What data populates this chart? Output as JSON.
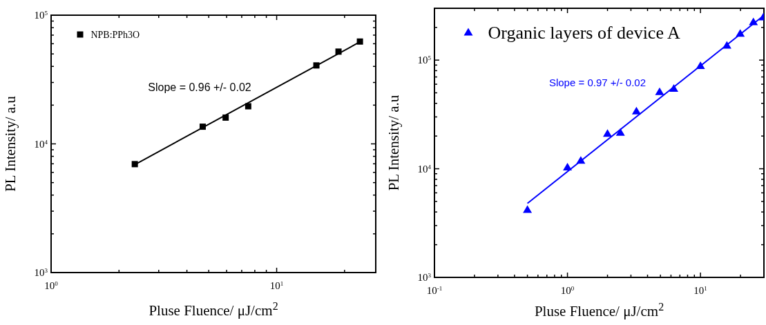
{
  "chart_data": [
    {
      "type": "scatter",
      "xlabel": "Pluse Fluence/ μJ/cm$^{2}$",
      "ylabel": "PL Intensity/ a.u",
      "log": "xy",
      "legend": "top left",
      "xlim": [
        1,
        27.5
      ],
      "ylim": [
        1000,
        100000
      ],
      "xticks": [
        {
          "value": 1,
          "label": "10$^{0}$"
        },
        {
          "value": 2,
          "label": null
        },
        {
          "value": 3,
          "label": null
        },
        {
          "value": 4,
          "label": null
        },
        {
          "value": 5,
          "label": null
        },
        {
          "value": 6,
          "label": null
        },
        {
          "value": 7,
          "label": null
        },
        {
          "value": 8,
          "label": null
        },
        {
          "value": 9,
          "label": null
        },
        {
          "value": 10,
          "label": "10$^{1}$"
        },
        {
          "value": 20,
          "label": null
        }
      ],
      "yticks": [
        {
          "value": 1000,
          "label": "10$^{3}$"
        },
        {
          "value": 2000,
          "label": null
        },
        {
          "value": 3000,
          "label": null
        },
        {
          "value": 4000,
          "label": null
        },
        {
          "value": 5000,
          "label": null
        },
        {
          "value": 6000,
          "label": null
        },
        {
          "value": 7000,
          "label": null
        },
        {
          "value": 8000,
          "label": null
        },
        {
          "value": 9000,
          "label": null
        },
        {
          "value": 10000,
          "label": "10$^{4}$"
        },
        {
          "value": 20000,
          "label": null
        },
        {
          "value": 30000,
          "label": null
        },
        {
          "value": 40000,
          "label": null
        },
        {
          "value": 50000,
          "label": null
        },
        {
          "value": 60000,
          "label": null
        },
        {
          "value": 70000,
          "label": null
        },
        {
          "value": 80000,
          "label": null
        },
        {
          "value": 90000,
          "label": null
        },
        {
          "value": 100000,
          "label": "10$^{5}$"
        }
      ],
      "annotations": [
        "Slope = 0.96 +/- 0.02"
      ],
      "series": [
        {
          "name": "NPB:PPh3O",
          "color": "#000000",
          "marker": "square",
          "x": [
            2.35,
            4.7,
            5.94,
            7.48,
            15.0,
            18.8,
            23.4
          ],
          "values": [
            6960,
            13600,
            16000,
            19600,
            40700,
            52100,
            62400
          ]
        },
        {
          "type": "line",
          "color": "#000000",
          "x": [
            2.35,
            23.4
          ],
          "values": [
            6900,
            62000
          ]
        }
      ]
    },
    {
      "type": "scatter",
      "xlabel": "Pluse Fluence/ μJ/cm$^{2}$",
      "ylabel": "PL Intensity/ a.u",
      "log": "xy",
      "legend": "top left",
      "xlim": [
        0.1,
        30
      ],
      "ylim": [
        1000,
        300000
      ],
      "xticks": [
        {
          "value": 0.1,
          "label": "10$^{-1}$"
        },
        {
          "value": 0.2,
          "label": null
        },
        {
          "value": 0.3,
          "label": null
        },
        {
          "value": 0.4,
          "label": null
        },
        {
          "value": 0.5,
          "label": null
        },
        {
          "value": 0.6,
          "label": null
        },
        {
          "value": 0.7,
          "label": null
        },
        {
          "value": 0.8,
          "label": null
        },
        {
          "value": 0.9,
          "label": null
        },
        {
          "value": 1,
          "label": "10$^{0}$"
        },
        {
          "value": 2,
          "label": null
        },
        {
          "value": 3,
          "label": null
        },
        {
          "value": 4,
          "label": null
        },
        {
          "value": 5,
          "label": null
        },
        {
          "value": 6,
          "label": null
        },
        {
          "value": 7,
          "label": null
        },
        {
          "value": 8,
          "label": null
        },
        {
          "value": 9,
          "label": null
        },
        {
          "value": 10,
          "label": "10$^{1}$"
        },
        {
          "value": 20,
          "label": null
        }
      ],
      "yticks": [
        {
          "value": 1000,
          "label": "10$^{3}$"
        },
        {
          "value": 2000,
          "label": null
        },
        {
          "value": 3000,
          "label": null
        },
        {
          "value": 4000,
          "label": null
        },
        {
          "value": 5000,
          "label": null
        },
        {
          "value": 6000,
          "label": null
        },
        {
          "value": 7000,
          "label": null
        },
        {
          "value": 8000,
          "label": null
        },
        {
          "value": 9000,
          "label": null
        },
        {
          "value": 10000,
          "label": "10$^{4}$"
        },
        {
          "value": 20000,
          "label": null
        },
        {
          "value": 30000,
          "label": null
        },
        {
          "value": 40000,
          "label": null
        },
        {
          "value": 50000,
          "label": null
        },
        {
          "value": 60000,
          "label": null
        },
        {
          "value": 70000,
          "label": null
        },
        {
          "value": 80000,
          "label": null
        },
        {
          "value": 90000,
          "label": null
        },
        {
          "value": 100000,
          "label": "10$^{5}$"
        },
        {
          "value": 200000,
          "label": null
        }
      ],
      "annotations": [
        "Slope = 0.97 +/- 0.02"
      ],
      "series": [
        {
          "name": "Organic layers of device A",
          "color": "#0000ff",
          "marker": "triangle",
          "x": [
            0.5,
            1.0,
            1.26,
            2.0,
            2.5,
            3.3,
            4.93,
            6.3,
            10,
            15.8,
            19.9,
            25,
            29.7
          ],
          "values": [
            4200,
            10300,
            11900,
            21000,
            21500,
            33800,
            51000,
            54600,
            88400,
            136000,
            175000,
            224000,
            248000
          ]
        },
        {
          "type": "line",
          "color": "#0000ff",
          "x": [
            0.5,
            30
          ],
          "values": [
            4800,
            258000
          ]
        }
      ]
    }
  ]
}
